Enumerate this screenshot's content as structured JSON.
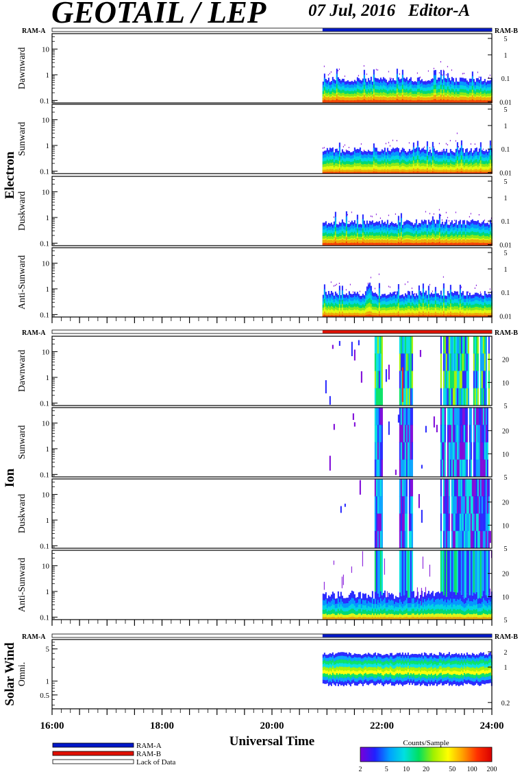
{
  "header": {
    "instrument": "GEOTAIL / LEP",
    "date_editor": "07 Jul, 2016   Editor-A"
  },
  "chart_data": {
    "type": "heatmap",
    "xlabel": "Universal Time",
    "x_ticks": [
      "16:00",
      "18:00",
      "20:00",
      "22:00",
      "24:00"
    ],
    "x_range_hours": [
      16,
      24
    ],
    "data_start_hour": 20.92,
    "groups": [
      {
        "name": "Electron",
        "ram_left": "RAM-A",
        "ram_right": "RAM-B",
        "ram_state": "RAM-A",
        "y_ticks_left": [
          "10",
          "1",
          "0.1"
        ],
        "y_ticks_right": [
          "5",
          "1",
          "0.1",
          "0.01"
        ],
        "panels": [
          {
            "label": "Dawnward",
            "profile": "electron-strong"
          },
          {
            "label": "Sunward",
            "profile": "electron-weak"
          },
          {
            "label": "Duskward",
            "profile": "electron-strong"
          },
          {
            "label": "Anti-Sunward",
            "profile": "electron-weak"
          }
        ]
      },
      {
        "name": "Ion",
        "ram_left": "RAM-A",
        "ram_right": "RAM-B",
        "ram_state": "RAM-B",
        "y_ticks_left": [
          "10",
          "1",
          "0.1"
        ],
        "y_ticks_right": [
          "20",
          "10",
          "5"
        ],
        "panels": [
          {
            "label": "Dawnward",
            "profile": "ion-dawn"
          },
          {
            "label": "Sunward",
            "profile": "ion-sparse"
          },
          {
            "label": "Duskward",
            "profile": "ion-sparse"
          },
          {
            "label": "Anti-Sunward",
            "profile": "ion-anti"
          }
        ]
      },
      {
        "name": "Solar Wind",
        "ram_left": "RAM-A",
        "ram_right": "RAM-B",
        "ram_state": "RAM-A",
        "y_ticks_left": [
          "5",
          "1",
          "0.5"
        ],
        "y_ticks_right": [
          "2",
          "1",
          "0.2"
        ],
        "panels": [
          {
            "label": "Omni.",
            "profile": "solar-wind"
          }
        ]
      }
    ],
    "legend": {
      "items": [
        {
          "label": "RAM-A",
          "color": "#0018c8"
        },
        {
          "label": "RAM-B",
          "color": "#e01000"
        },
        {
          "label": "Lack of Data",
          "color": "#ffffff"
        }
      ]
    },
    "colorbar": {
      "title": "Counts/Sample",
      "ticks": [
        "2",
        "5",
        "10",
        "20",
        "50",
        "100",
        "200"
      ],
      "scale": "log",
      "colors": [
        "#7a00d8",
        "#2020ff",
        "#00a0ff",
        "#00e0e0",
        "#00e060",
        "#a0f000",
        "#ffff00",
        "#ffa000",
        "#ff3000",
        "#d80000"
      ]
    }
  }
}
